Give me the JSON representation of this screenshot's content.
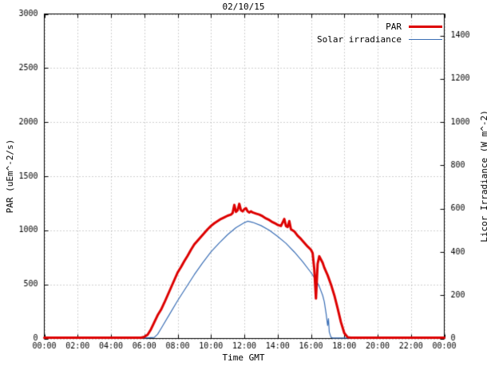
{
  "chart_data": {
    "type": "line",
    "title": "02/10/15",
    "xlabel": "Time GMT",
    "ylabel_left": "PAR (uEm^-2/s)",
    "ylabel_right": "Licor Irradiance (W m^-2)",
    "x_range": [
      0,
      24
    ],
    "y_left_range": [
      0,
      3000
    ],
    "y_right_range": [
      0,
      1500
    ],
    "x_tick_hours": [
      0,
      2,
      4,
      6,
      8,
      10,
      12,
      14,
      16,
      18,
      20,
      22,
      24
    ],
    "x_tick_labels": [
      "00:00",
      "02:00",
      "04:00",
      "06:00",
      "08:00",
      "10:00",
      "12:00",
      "14:00",
      "16:00",
      "18:00",
      "20:00",
      "22:00",
      "00:00"
    ],
    "y_left_ticks": [
      0,
      500,
      1000,
      1500,
      2000,
      2500,
      3000
    ],
    "y_right_ticks": [
      0,
      200,
      400,
      600,
      800,
      1000,
      1200,
      1400
    ],
    "grid": true,
    "legend_position": "top-right",
    "colors": {
      "grid": "#a0a0a0",
      "border": "#000000",
      "par": "#dd0000",
      "solar": "#3b6fb6"
    },
    "series": [
      {
        "name": "PAR",
        "axis": "left",
        "color": "#dd0000",
        "width": 3,
        "points": [
          [
            0,
            8
          ],
          [
            1,
            8
          ],
          [
            2,
            8
          ],
          [
            3,
            8
          ],
          [
            4,
            8
          ],
          [
            5,
            8
          ],
          [
            5.8,
            8
          ],
          [
            6.0,
            15
          ],
          [
            6.2,
            35
          ],
          [
            6.4,
            85
          ],
          [
            6.6,
            150
          ],
          [
            6.8,
            215
          ],
          [
            7.0,
            265
          ],
          [
            7.2,
            330
          ],
          [
            7.4,
            400
          ],
          [
            7.6,
            470
          ],
          [
            7.8,
            540
          ],
          [
            8.0,
            610
          ],
          [
            8.2,
            660
          ],
          [
            8.4,
            715
          ],
          [
            8.6,
            765
          ],
          [
            8.8,
            820
          ],
          [
            9.0,
            870
          ],
          [
            9.2,
            905
          ],
          [
            9.4,
            940
          ],
          [
            9.6,
            975
          ],
          [
            9.8,
            1010
          ],
          [
            10.0,
            1040
          ],
          [
            10.2,
            1065
          ],
          [
            10.4,
            1085
          ],
          [
            10.6,
            1105
          ],
          [
            10.8,
            1120
          ],
          [
            11.0,
            1135
          ],
          [
            11.2,
            1145
          ],
          [
            11.3,
            1160
          ],
          [
            11.4,
            1235
          ],
          [
            11.5,
            1170
          ],
          [
            11.6,
            1185
          ],
          [
            11.7,
            1245
          ],
          [
            11.8,
            1185
          ],
          [
            11.9,
            1175
          ],
          [
            12.0,
            1195
          ],
          [
            12.1,
            1205
          ],
          [
            12.2,
            1175
          ],
          [
            12.3,
            1165
          ],
          [
            12.4,
            1175
          ],
          [
            12.5,
            1165
          ],
          [
            12.7,
            1155
          ],
          [
            12.9,
            1145
          ],
          [
            13.1,
            1130
          ],
          [
            13.3,
            1110
          ],
          [
            13.5,
            1095
          ],
          [
            13.7,
            1075
          ],
          [
            13.9,
            1060
          ],
          [
            14.0,
            1050
          ],
          [
            14.2,
            1040
          ],
          [
            14.4,
            1105
          ],
          [
            14.5,
            1040
          ],
          [
            14.6,
            1030
          ],
          [
            14.7,
            1085
          ],
          [
            14.8,
            1010
          ],
          [
            15.0,
            990
          ],
          [
            15.2,
            950
          ],
          [
            15.4,
            920
          ],
          [
            15.6,
            885
          ],
          [
            15.8,
            850
          ],
          [
            16.0,
            820
          ],
          [
            16.1,
            790
          ],
          [
            16.2,
            640
          ],
          [
            16.3,
            370
          ],
          [
            16.4,
            690
          ],
          [
            16.5,
            760
          ],
          [
            16.6,
            730
          ],
          [
            16.7,
            700
          ],
          [
            16.8,
            655
          ],
          [
            17.0,
            585
          ],
          [
            17.2,
            500
          ],
          [
            17.4,
            400
          ],
          [
            17.6,
            280
          ],
          [
            17.8,
            150
          ],
          [
            18.0,
            50
          ],
          [
            18.2,
            12
          ],
          [
            18.4,
            8
          ],
          [
            19,
            8
          ],
          [
            20,
            8
          ],
          [
            21,
            8
          ],
          [
            22,
            8
          ],
          [
            23,
            8
          ],
          [
            24,
            8
          ]
        ]
      },
      {
        "name": "Solar irradiance",
        "axis": "right",
        "color": "#3b6fb6",
        "width": 1.2,
        "points": [
          [
            0,
            2
          ],
          [
            2,
            2
          ],
          [
            4,
            2
          ],
          [
            6,
            2
          ],
          [
            6.6,
            5
          ],
          [
            6.8,
            20
          ],
          [
            7.0,
            45
          ],
          [
            7.5,
            110
          ],
          [
            8.0,
            175
          ],
          [
            8.5,
            235
          ],
          [
            9.0,
            295
          ],
          [
            9.5,
            350
          ],
          [
            10.0,
            400
          ],
          [
            10.5,
            442
          ],
          [
            11.0,
            480
          ],
          [
            11.5,
            512
          ],
          [
            12.0,
            535
          ],
          [
            12.2,
            542
          ],
          [
            12.5,
            537
          ],
          [
            13.0,
            522
          ],
          [
            13.5,
            500
          ],
          [
            14.0,
            472
          ],
          [
            14.5,
            440
          ],
          [
            15.0,
            400
          ],
          [
            15.5,
            355
          ],
          [
            16.0,
            305
          ],
          [
            16.3,
            270
          ],
          [
            16.5,
            240
          ],
          [
            16.7,
            200
          ],
          [
            16.8,
            170
          ],
          [
            16.9,
            120
          ],
          [
            17.0,
            60
          ],
          [
            17.05,
            92
          ],
          [
            17.1,
            30
          ],
          [
            17.2,
            6
          ],
          [
            17.3,
            2
          ],
          [
            18,
            2
          ],
          [
            20,
            2
          ],
          [
            22,
            2
          ],
          [
            24,
            2
          ]
        ]
      }
    ]
  }
}
